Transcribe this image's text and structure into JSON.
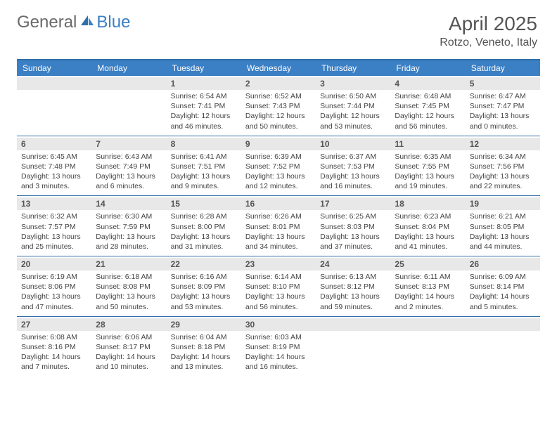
{
  "brand": {
    "part1": "General",
    "part2": "Blue"
  },
  "title": "April 2025",
  "location": "Rotzo, Veneto, Italy",
  "colors": {
    "header_bg": "#3b7fc4",
    "header_border": "#2f6fa8",
    "daynum_bg": "#e8e8e8",
    "text": "#444444",
    "title_text": "#555555"
  },
  "typography": {
    "title_fontsize": 28,
    "location_fontsize": 16,
    "dayheader_fontsize": 12,
    "daynum_fontsize": 12,
    "body_fontsize": 10.5
  },
  "day_names": [
    "Sunday",
    "Monday",
    "Tuesday",
    "Wednesday",
    "Thursday",
    "Friday",
    "Saturday"
  ],
  "weeks": [
    [
      {
        "n": "",
        "sr": "",
        "ss": "",
        "dl": ""
      },
      {
        "n": "",
        "sr": "",
        "ss": "",
        "dl": ""
      },
      {
        "n": "1",
        "sr": "Sunrise: 6:54 AM",
        "ss": "Sunset: 7:41 PM",
        "dl": "Daylight: 12 hours and 46 minutes."
      },
      {
        "n": "2",
        "sr": "Sunrise: 6:52 AM",
        "ss": "Sunset: 7:43 PM",
        "dl": "Daylight: 12 hours and 50 minutes."
      },
      {
        "n": "3",
        "sr": "Sunrise: 6:50 AM",
        "ss": "Sunset: 7:44 PM",
        "dl": "Daylight: 12 hours and 53 minutes."
      },
      {
        "n": "4",
        "sr": "Sunrise: 6:48 AM",
        "ss": "Sunset: 7:45 PM",
        "dl": "Daylight: 12 hours and 56 minutes."
      },
      {
        "n": "5",
        "sr": "Sunrise: 6:47 AM",
        "ss": "Sunset: 7:47 PM",
        "dl": "Daylight: 13 hours and 0 minutes."
      }
    ],
    [
      {
        "n": "6",
        "sr": "Sunrise: 6:45 AM",
        "ss": "Sunset: 7:48 PM",
        "dl": "Daylight: 13 hours and 3 minutes."
      },
      {
        "n": "7",
        "sr": "Sunrise: 6:43 AM",
        "ss": "Sunset: 7:49 PM",
        "dl": "Daylight: 13 hours and 6 minutes."
      },
      {
        "n": "8",
        "sr": "Sunrise: 6:41 AM",
        "ss": "Sunset: 7:51 PM",
        "dl": "Daylight: 13 hours and 9 minutes."
      },
      {
        "n": "9",
        "sr": "Sunrise: 6:39 AM",
        "ss": "Sunset: 7:52 PM",
        "dl": "Daylight: 13 hours and 12 minutes."
      },
      {
        "n": "10",
        "sr": "Sunrise: 6:37 AM",
        "ss": "Sunset: 7:53 PM",
        "dl": "Daylight: 13 hours and 16 minutes."
      },
      {
        "n": "11",
        "sr": "Sunrise: 6:35 AM",
        "ss": "Sunset: 7:55 PM",
        "dl": "Daylight: 13 hours and 19 minutes."
      },
      {
        "n": "12",
        "sr": "Sunrise: 6:34 AM",
        "ss": "Sunset: 7:56 PM",
        "dl": "Daylight: 13 hours and 22 minutes."
      }
    ],
    [
      {
        "n": "13",
        "sr": "Sunrise: 6:32 AM",
        "ss": "Sunset: 7:57 PM",
        "dl": "Daylight: 13 hours and 25 minutes."
      },
      {
        "n": "14",
        "sr": "Sunrise: 6:30 AM",
        "ss": "Sunset: 7:59 PM",
        "dl": "Daylight: 13 hours and 28 minutes."
      },
      {
        "n": "15",
        "sr": "Sunrise: 6:28 AM",
        "ss": "Sunset: 8:00 PM",
        "dl": "Daylight: 13 hours and 31 minutes."
      },
      {
        "n": "16",
        "sr": "Sunrise: 6:26 AM",
        "ss": "Sunset: 8:01 PM",
        "dl": "Daylight: 13 hours and 34 minutes."
      },
      {
        "n": "17",
        "sr": "Sunrise: 6:25 AM",
        "ss": "Sunset: 8:03 PM",
        "dl": "Daylight: 13 hours and 37 minutes."
      },
      {
        "n": "18",
        "sr": "Sunrise: 6:23 AM",
        "ss": "Sunset: 8:04 PM",
        "dl": "Daylight: 13 hours and 41 minutes."
      },
      {
        "n": "19",
        "sr": "Sunrise: 6:21 AM",
        "ss": "Sunset: 8:05 PM",
        "dl": "Daylight: 13 hours and 44 minutes."
      }
    ],
    [
      {
        "n": "20",
        "sr": "Sunrise: 6:19 AM",
        "ss": "Sunset: 8:06 PM",
        "dl": "Daylight: 13 hours and 47 minutes."
      },
      {
        "n": "21",
        "sr": "Sunrise: 6:18 AM",
        "ss": "Sunset: 8:08 PM",
        "dl": "Daylight: 13 hours and 50 minutes."
      },
      {
        "n": "22",
        "sr": "Sunrise: 6:16 AM",
        "ss": "Sunset: 8:09 PM",
        "dl": "Daylight: 13 hours and 53 minutes."
      },
      {
        "n": "23",
        "sr": "Sunrise: 6:14 AM",
        "ss": "Sunset: 8:10 PM",
        "dl": "Daylight: 13 hours and 56 minutes."
      },
      {
        "n": "24",
        "sr": "Sunrise: 6:13 AM",
        "ss": "Sunset: 8:12 PM",
        "dl": "Daylight: 13 hours and 59 minutes."
      },
      {
        "n": "25",
        "sr": "Sunrise: 6:11 AM",
        "ss": "Sunset: 8:13 PM",
        "dl": "Daylight: 14 hours and 2 minutes."
      },
      {
        "n": "26",
        "sr": "Sunrise: 6:09 AM",
        "ss": "Sunset: 8:14 PM",
        "dl": "Daylight: 14 hours and 5 minutes."
      }
    ],
    [
      {
        "n": "27",
        "sr": "Sunrise: 6:08 AM",
        "ss": "Sunset: 8:16 PM",
        "dl": "Daylight: 14 hours and 7 minutes."
      },
      {
        "n": "28",
        "sr": "Sunrise: 6:06 AM",
        "ss": "Sunset: 8:17 PM",
        "dl": "Daylight: 14 hours and 10 minutes."
      },
      {
        "n": "29",
        "sr": "Sunrise: 6:04 AM",
        "ss": "Sunset: 8:18 PM",
        "dl": "Daylight: 14 hours and 13 minutes."
      },
      {
        "n": "30",
        "sr": "Sunrise: 6:03 AM",
        "ss": "Sunset: 8:19 PM",
        "dl": "Daylight: 14 hours and 16 minutes."
      },
      {
        "n": "",
        "sr": "",
        "ss": "",
        "dl": ""
      },
      {
        "n": "",
        "sr": "",
        "ss": "",
        "dl": ""
      },
      {
        "n": "",
        "sr": "",
        "ss": "",
        "dl": ""
      }
    ]
  ]
}
